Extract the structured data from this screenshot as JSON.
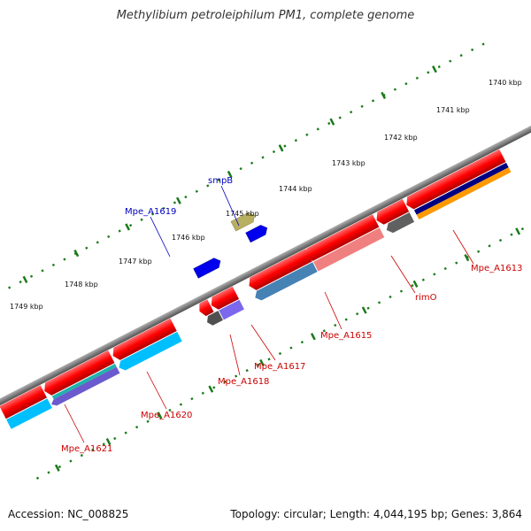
{
  "title": "Methylibium petroleiphilum PM1, complete genome",
  "accession": "Accession: NC_008825",
  "topology": "Topology: circular; Length: 4,044,195 bp; Genes: 3,864",
  "ticks": [
    "1740 kbp",
    "1741 kbp",
    "1742 kbp",
    "1743 kbp",
    "1744 kbp",
    "1745 kbp",
    "1746 kbp",
    "1747 kbp",
    "1748 kbp",
    "1749 kbp"
  ],
  "gene_labels": {
    "smpB": "smpB",
    "mpe_a1619": "Mpe_A1619",
    "mpe_a1621": "Mpe_A1621",
    "mpe_a1620": "Mpe_A1620",
    "mpe_a1618": "Mpe_A1618",
    "mpe_a1617": "Mpe_A1617",
    "mpe_a1615": "Mpe_A1615",
    "rimO": "rimO",
    "mpe_a1613": "Mpe_A1613"
  },
  "colors": {
    "backbone": "#808080",
    "cds": "#ff0000",
    "tick": "#1a7a1a",
    "forward_label": "#0000c0",
    "reverse_label": "#cc0000"
  }
}
